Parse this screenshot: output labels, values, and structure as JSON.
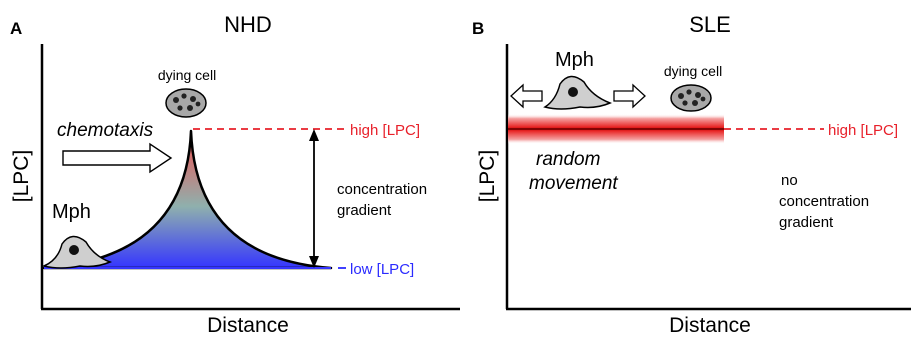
{
  "panel_a": {
    "label": "A",
    "title": "NHD",
    "y_axis_label": "[LPC]",
    "x_axis_label": "Distance",
    "cell_label": "Mph",
    "target_label": "dying cell",
    "motion_label": "chemotaxis",
    "high_label": "high [LPC]",
    "low_label": "low [LPC]",
    "gradient_label_1": "concentration",
    "gradient_label_2": "gradient"
  },
  "panel_b": {
    "label": "B",
    "title": "SLE",
    "y_axis_label": "[LPC]",
    "x_axis_label": "Distance",
    "cell_label": "Mph",
    "target_label": "dying cell",
    "motion_label_1": "random",
    "motion_label_2": "movement",
    "high_label": "high [LPC]",
    "note_label_1": "no",
    "note_label_2": "concentration",
    "note_label_3": "gradient"
  },
  "colors": {
    "high": "#e8202a",
    "low": "#2b2bff",
    "gradient_mid": "#7fa8a8",
    "cell_fill": "#cfcfcf",
    "dying_cell_fill": "#a8a8a8"
  }
}
